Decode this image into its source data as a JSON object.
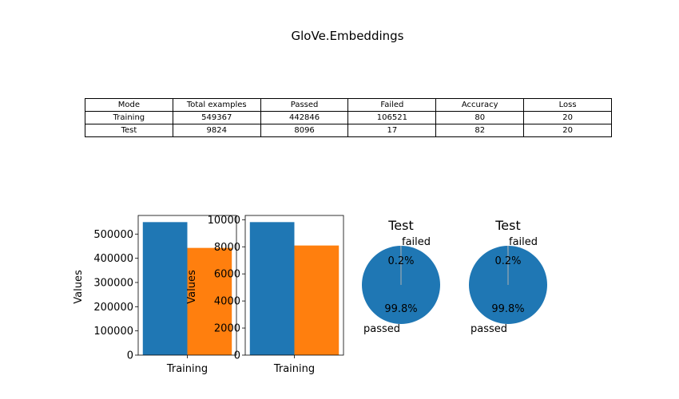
{
  "figure": {
    "title": "GloVe.Embeddings"
  },
  "table": {
    "headers": [
      "Mode",
      "Total examples",
      "Passed",
      "Failed",
      "Accuracy",
      "Loss"
    ],
    "rows": [
      [
        "Training",
        "549367",
        "442846",
        "106521",
        "80",
        "20"
      ],
      [
        "Test",
        "9824",
        "8096",
        "17",
        "82",
        "20"
      ]
    ]
  },
  "colors": {
    "blue": "#1f77b4",
    "orange": "#ff7f0e"
  },
  "chart_data": [
    {
      "type": "bar",
      "categories": [
        "Training"
      ],
      "series": [
        {
          "values": [
            549367
          ]
        },
        {
          "values": [
            442846
          ]
        }
      ],
      "title": "",
      "xlabel": "",
      "ylabel": "Values",
      "ylim": [
        0,
        576835
      ],
      "yticks": [
        0,
        100000,
        200000,
        300000,
        400000,
        500000
      ],
      "ytick_labels": [
        "0",
        "100000",
        "200000",
        "300000",
        "400000",
        "500000"
      ]
    },
    {
      "type": "bar",
      "categories": [
        "Training"
      ],
      "series": [
        {
          "values": [
            9824
          ]
        },
        {
          "values": [
            8096
          ]
        }
      ],
      "title": "",
      "xlabel": "",
      "ylabel": "Values",
      "ylim": [
        0,
        10315
      ],
      "yticks": [
        0,
        2000,
        4000,
        6000,
        8000,
        10000
      ],
      "ytick_labels": [
        "0",
        "2000",
        "4000",
        "6000",
        "8000",
        "10000"
      ]
    },
    {
      "type": "pie",
      "title": "Test",
      "labels": [
        "failed",
        "passed"
      ],
      "values": [
        0.2,
        99.8
      ],
      "autopct": [
        "0.2%",
        "99.8%"
      ]
    },
    {
      "type": "pie",
      "title": "Test",
      "labels": [
        "failed",
        "passed"
      ],
      "values": [
        0.2,
        99.8
      ],
      "autopct": [
        "0.2%",
        "99.8%"
      ]
    }
  ]
}
